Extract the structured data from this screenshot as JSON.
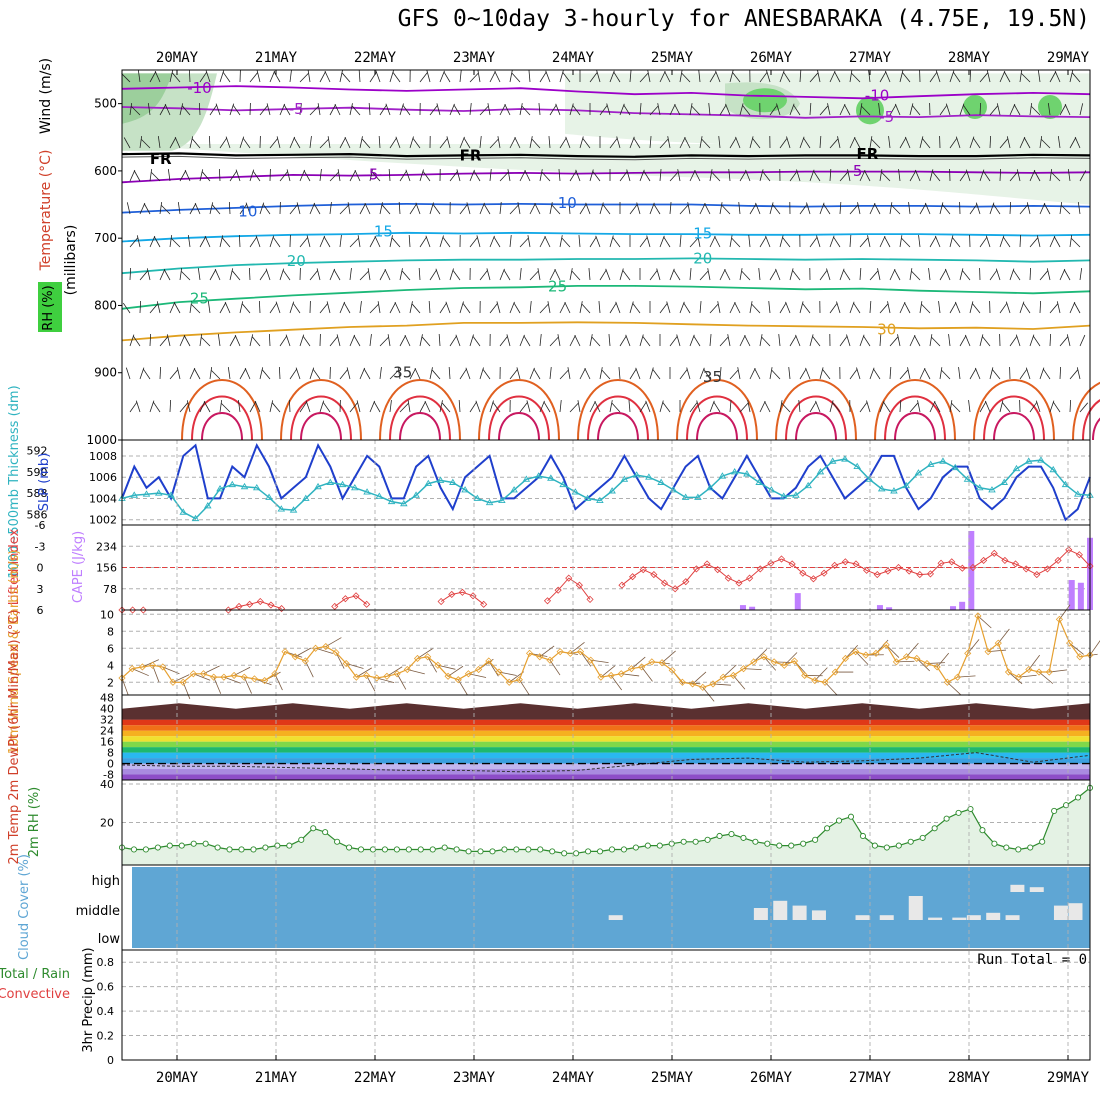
{
  "title": "GFS 0~10day 3-hourly for ANESBARAKA (4.75E, 19.5N)",
  "dates": [
    "20MAY",
    "21MAY",
    "22MAY",
    "23MAY",
    "24MAY",
    "25MAY",
    "26MAY",
    "27MAY",
    "28MAY",
    "29MAY"
  ],
  "colors": {
    "panel_bg": "#ffffff",
    "grid": "#b0b0b0",
    "rh_light": "#e7f3e7",
    "rh_mid": "#c6e2c6",
    "rh_dark": "#6fd36f",
    "thickness": "#2fb3c0",
    "slp": "#1f3fcc",
    "lifted_index": "#e04040",
    "cape": "#bf7fff",
    "wind_speed": "#e6a030",
    "rh2m": "#2e8b2e",
    "cloud_bg": "#5fa6d4",
    "cloud_bar": "#e8e8e8"
  },
  "chart_data": [
    {
      "type": "contour",
      "name": "cross-section",
      "ylabel_wind": "Wind (m/s)",
      "ylabel_temp": "Temperature (°C)",
      "ylabel_rh": "RH (%)",
      "ylabel_units": "(millibars)",
      "yticks": [
        "500",
        "600",
        "700",
        "800",
        "900",
        "1000"
      ],
      "ylim": [
        450,
        1000
      ],
      "temperature_labels": [
        {
          "label": "-10",
          "t": 0.08,
          "p": 477
        },
        {
          "label": "-10",
          "t": 0.78,
          "p": 488
        },
        {
          "label": "-5",
          "t": 0.18,
          "p": 508
        },
        {
          "label": "-5",
          "t": 0.79,
          "p": 520
        },
        {
          "label": "FR",
          "t": 0.04,
          "p": 582
        },
        {
          "label": "FR",
          "t": 0.36,
          "p": 577
        },
        {
          "label": "FR",
          "t": 0.77,
          "p": 575
        },
        {
          "label": "5",
          "t": 0.26,
          "p": 605
        },
        {
          "label": "5",
          "t": 0.76,
          "p": 600
        },
        {
          "label": "10",
          "t": 0.13,
          "p": 660
        },
        {
          "label": "10",
          "t": 0.46,
          "p": 648
        },
        {
          "label": "15",
          "t": 0.27,
          "p": 690
        },
        {
          "label": "15",
          "t": 0.6,
          "p": 693
        },
        {
          "label": "20",
          "t": 0.18,
          "p": 734
        },
        {
          "label": "20",
          "t": 0.6,
          "p": 730
        },
        {
          "label": "25",
          "t": 0.08,
          "p": 790
        },
        {
          "label": "25",
          "t": 0.45,
          "p": 772
        },
        {
          "label": "30",
          "t": 0.79,
          "p": 836
        },
        {
          "label": "35",
          "t": 0.29,
          "p": 900
        },
        {
          "label": "35",
          "t": 0.61,
          "p": 906
        }
      ],
      "isotherm_levels": [
        {
          "T": -10,
          "color": "#9b00c8",
          "p": [
            478,
            476,
            474,
            476,
            479,
            481,
            479,
            477,
            482,
            486,
            484,
            488,
            490,
            492,
            489,
            486,
            484,
            486
          ]
        },
        {
          "T": -5,
          "color": "#a020c8",
          "p": [
            505,
            507,
            510,
            508,
            506,
            509,
            511,
            508,
            510,
            514,
            516,
            518,
            521,
            519,
            520,
            517,
            519,
            520
          ]
        },
        {
          "T": 0,
          "color": "#000000",
          "p": [
            575,
            574,
            577,
            576,
            575,
            578,
            577,
            576,
            578,
            579,
            577,
            578,
            577,
            577,
            578,
            578,
            576,
            577
          ]
        },
        {
          "T": 5,
          "color": "#8b00b5",
          "p": [
            617,
            612,
            609,
            606,
            607,
            606,
            604,
            603,
            604,
            603,
            602,
            602,
            601,
            601,
            601,
            602,
            603,
            602
          ]
        },
        {
          "T": 10,
          "color": "#1f5fd8",
          "p": [
            662,
            658,
            655,
            652,
            650,
            649,
            650,
            649,
            650,
            650,
            650,
            652,
            653,
            652,
            652,
            653,
            652,
            653
          ]
        },
        {
          "T": 15,
          "color": "#14a8e6",
          "p": [
            705,
            700,
            697,
            695,
            694,
            692,
            693,
            692,
            693,
            694,
            694,
            695,
            695,
            694,
            694,
            695,
            696,
            695
          ]
        },
        {
          "T": 20,
          "color": "#22b8b0",
          "p": [
            752,
            745,
            740,
            737,
            735,
            733,
            732,
            732,
            731,
            731,
            730,
            731,
            732,
            731,
            732,
            733,
            735,
            733
          ]
        },
        {
          "T": 25,
          "color": "#1cb878",
          "p": [
            805,
            795,
            790,
            785,
            781,
            777,
            774,
            773,
            771,
            771,
            772,
            774,
            776,
            775,
            778,
            780,
            782,
            779
          ]
        },
        {
          "T": 30,
          "color": "#e0a020",
          "p": [
            852,
            845,
            840,
            836,
            832,
            830,
            826,
            826,
            825,
            826,
            828,
            830,
            831,
            832,
            834,
            833,
            835,
            830
          ]
        }
      ],
      "rh_shading": "Wet regions near 500-650 mb, especially 26-29 MAY",
      "wind_barbs": true
    },
    {
      "type": "line",
      "name": "thickness-slp",
      "ylabel_left": "1000~500mb Thickness (dm)",
      "ylabel_right": "SLP (mb)",
      "yticks_left": [
        "586",
        "588",
        "590",
        "592"
      ],
      "yticks_right": [
        "1002",
        "1004",
        "1006",
        "1008"
      ],
      "ylim_left": [
        585,
        593
      ],
      "ylim_right": [
        1001.5,
        1009.5
      ],
      "series": [
        {
          "name": "SLP",
          "axis": "right",
          "values": [
            1004,
            1007,
            1005,
            1006,
            1004,
            1008,
            1009,
            1004,
            1004,
            1007,
            1006,
            1009,
            1007,
            1004,
            1005,
            1006,
            1009,
            1007,
            1004,
            1006,
            1008,
            1007,
            1004,
            1004,
            1007,
            1008,
            1005,
            1003,
            1006,
            1007,
            1008,
            1004,
            1004,
            1005,
            1006,
            1008,
            1006,
            1003,
            1004,
            1005,
            1006,
            1008,
            1006,
            1004,
            1003,
            1005,
            1007,
            1008,
            1005,
            1004,
            1006,
            1008,
            1006,
            1004,
            1004,
            1005,
            1007,
            1008,
            1006,
            1004,
            1005,
            1006,
            1008,
            1008,
            1005,
            1003,
            1004,
            1006,
            1007,
            1007,
            1004,
            1003,
            1004,
            1006,
            1007,
            1007,
            1005,
            1002,
            1003,
            1006
          ]
        },
        {
          "name": "Thickness",
          "axis": "left",
          "values": [
            587.5,
            587.8,
            587.9,
            588.0,
            587.8,
            586.2,
            585.6,
            586.8,
            588.4,
            588.8,
            588.6,
            588.5,
            587.6,
            586.5,
            586.4,
            587.5,
            588.6,
            589.0,
            588.8,
            588.5,
            588.1,
            587.7,
            587.2,
            587.0,
            587.8,
            588.9,
            589.2,
            589.0,
            588.3,
            587.5,
            587.1,
            587.3,
            588.3,
            589.3,
            589.6,
            589.4,
            588.8,
            588.1,
            587.5,
            587.3,
            588.2,
            589.3,
            589.7,
            589.5,
            589.0,
            588.3,
            587.6,
            587.6,
            588.5,
            589.6,
            590.0,
            589.8,
            589.0,
            588.3,
            587.7,
            587.8,
            588.7,
            590.0,
            591.0,
            591.2,
            590.5,
            589.3,
            588.4,
            588.2,
            588.7,
            589.9,
            590.7,
            591.0,
            590.4,
            589.3,
            588.5,
            588.3,
            589.0,
            590.3,
            591.0,
            591.1,
            590.2,
            588.8,
            587.9,
            587.8
          ]
        }
      ]
    },
    {
      "type": "bar-line",
      "name": "lifted-index-cape",
      "ylabel_left": "Lifted Index",
      "ylabel_right": "CAPE (J/kg)",
      "yticks_left": [
        "-6",
        "-3",
        "0",
        "3",
        "6"
      ],
      "yticks_right": [
        "78",
        "156",
        "234"
      ],
      "ylim_left": [
        6,
        -6
      ],
      "ylim_right": [
        0,
        312
      ],
      "lifted_index": [
        6,
        6,
        6,
        null,
        null,
        null,
        null,
        null,
        null,
        null,
        6,
        5.5,
        5.2,
        4.8,
        5.3,
        5.8,
        null,
        null,
        null,
        null,
        5.5,
        4.4,
        4.0,
        5.2,
        null,
        null,
        null,
        null,
        null,
        null,
        4.8,
        3.8,
        3.5,
        4.0,
        5.2,
        null,
        null,
        null,
        null,
        null,
        4.7,
        3.2,
        1.5,
        2.5,
        4.5,
        null,
        null,
        2.5,
        1.3,
        0.3,
        1.0,
        2.2,
        3.0,
        2.0,
        0.2,
        -0.5,
        0.3,
        1.5,
        2.2,
        1.5,
        0.2,
        -0.6,
        -1.2,
        -0.5,
        0.8,
        1.6,
        0.8,
        -0.3,
        -0.8,
        -0.5,
        0.4,
        1.0,
        0.5,
        0.0,
        0.5,
        1.0,
        0.9,
        -0.6,
        -0.8,
        0.1,
        0.0,
        -1.0,
        -2.0,
        -1.0,
        -0.5,
        0.2,
        1.0,
        0.2,
        -1.0,
        -2.5,
        -1.8,
        -0.2
      ]
    },
    {
      "type": "bar",
      "name": "cape",
      "values_J_kg": [
        0,
        0,
        0,
        0,
        0,
        0,
        0,
        0,
        0,
        0,
        0,
        0,
        0,
        0,
        0,
        0,
        0,
        0,
        0,
        0,
        0,
        0,
        0,
        0,
        0,
        0,
        0,
        0,
        0,
        0,
        0,
        0,
        0,
        0,
        0,
        0,
        0,
        0,
        0,
        0,
        0,
        0,
        0,
        0,
        0,
        0,
        0,
        0,
        0,
        0,
        0,
        0,
        0,
        0,
        0,
        0,
        0,
        0,
        0,
        0,
        0,
        0,
        0,
        0,
        0,
        0,
        0,
        0,
        18,
        12,
        0,
        0,
        0,
        0,
        62,
        0,
        0,
        0,
        0,
        0,
        0,
        0,
        0,
        18,
        10,
        0,
        0,
        0,
        0,
        0,
        0,
        14,
        30,
        290,
        0,
        0,
        0,
        0,
        0,
        0,
        0,
        0,
        0,
        0,
        110,
        100,
        265
      ]
    },
    {
      "type": "line",
      "name": "10m-wind",
      "ylabel": "10m Wind Speed & Barbs (m/s)",
      "yticks": [
        "2",
        "4",
        "6",
        "8",
        "10"
      ],
      "ylim": [
        0.5,
        10.5
      ],
      "values": [
        2.5,
        3.6,
        3.8,
        4.0,
        3.8,
        2.0,
        2.0,
        3.0,
        3.0,
        2.6,
        2.6,
        2.8,
        2.6,
        2.4,
        2.2,
        3.0,
        5.6,
        5.0,
        4.5,
        6.0,
        6.2,
        5.5,
        4.2,
        2.6,
        2.8,
        2.5,
        2.7,
        3.0,
        3.5,
        4.8,
        5.0,
        4.0,
        2.7,
        2.3,
        3.0,
        3.5,
        4.5,
        3.2,
        2.0,
        2.3,
        5.4,
        5.0,
        4.6,
        5.6,
        5.4,
        5.6,
        4.6,
        2.6,
        2.8,
        3.0,
        3.6,
        3.8,
        4.4,
        4.3,
        3.4,
        2.0,
        1.8,
        1.4,
        1.8,
        2.6,
        2.8,
        3.6,
        4.4,
        5.0,
        4.4,
        4.0,
        4.5,
        2.8,
        2.2,
        2.0,
        3.2,
        4.8,
        5.6,
        5.2,
        5.4,
        6.4,
        4.4,
        5.0,
        4.8,
        4.2,
        3.8,
        2.0,
        2.6,
        5.4,
        9.8,
        5.6,
        6.6,
        3.2,
        2.6,
        3.5,
        3.2,
        3.2,
        9.4,
        6.6,
        5.0,
        5.2
      ]
    },
    {
      "type": "area",
      "name": "2m-temp-dewpt",
      "ylabel": "2m Temp 2m DewPt (6hr Min/Max) (°C)",
      "yticks": [
        "-8",
        "0",
        "8",
        "16",
        "24",
        "32",
        "40",
        "48"
      ],
      "ylim": [
        -12,
        50
      ],
      "temp_max": [
        40,
        44,
        40,
        44,
        40,
        44,
        40,
        44,
        40,
        44,
        40,
        44,
        40,
        44,
        40,
        44,
        40,
        44
      ],
      "dewpoint": [
        -1,
        -2,
        -2,
        -3,
        -4,
        -5,
        -5,
        -6,
        -5,
        -1,
        3,
        4,
        1,
        2,
        4,
        8,
        1,
        6
      ]
    },
    {
      "type": "area",
      "name": "2m-rh",
      "ylabel": "2m RH (%)",
      "yticks": [
        "20",
        "40"
      ],
      "ylim": [
        0,
        40
      ],
      "values": [
        7,
        6,
        6,
        7,
        8,
        8,
        9,
        9,
        7,
        6,
        6,
        6,
        7,
        8,
        8,
        11,
        17,
        15,
        10,
        7,
        6,
        6,
        6,
        6,
        6,
        6,
        6,
        7,
        6,
        5,
        5,
        5,
        6,
        6,
        6,
        6,
        5,
        4,
        4,
        5,
        5,
        6,
        6,
        7,
        8,
        8,
        9,
        10,
        10,
        11,
        13,
        14,
        12,
        10,
        9,
        8,
        8,
        9,
        11,
        17,
        21,
        23,
        13,
        8,
        7,
        8,
        10,
        12,
        17,
        22,
        25,
        27,
        16,
        9,
        7,
        6,
        7,
        10,
        26,
        29,
        33,
        38
      ]
    },
    {
      "type": "bar",
      "name": "cloud-cover",
      "ylabel": "Cloud Cover (%)",
      "yticks": [
        "high",
        "middle",
        "low"
      ],
      "bars": [
        {
          "t": 0.51,
          "level": "middle",
          "value": 20
        },
        {
          "t": 0.66,
          "level": "middle",
          "value": 50
        },
        {
          "t": 0.68,
          "level": "middle",
          "value": 80
        },
        {
          "t": 0.7,
          "level": "middle",
          "value": 60
        },
        {
          "t": 0.72,
          "level": "middle",
          "value": 40
        },
        {
          "t": 0.765,
          "level": "middle",
          "value": 20
        },
        {
          "t": 0.79,
          "level": "middle",
          "value": 20
        },
        {
          "t": 0.82,
          "level": "middle",
          "value": 100
        },
        {
          "t": 0.84,
          "level": "middle",
          "value": 10
        },
        {
          "t": 0.865,
          "level": "middle",
          "value": 10
        },
        {
          "t": 0.88,
          "level": "middle",
          "value": 20
        },
        {
          "t": 0.9,
          "level": "middle",
          "value": 30
        },
        {
          "t": 0.92,
          "level": "middle",
          "value": 20
        },
        {
          "t": 0.925,
          "level": "high",
          "value": 30
        },
        {
          "t": 0.945,
          "level": "high",
          "value": 20
        },
        {
          "t": 0.97,
          "level": "middle",
          "value": 60
        },
        {
          "t": 0.985,
          "level": "middle",
          "value": 70
        }
      ]
    },
    {
      "type": "line",
      "name": "precip",
      "ylabel": "3hr Precip (mm)",
      "legend_total": "Total / Rain",
      "legend_convective": "Convective",
      "run_total": "Run Total = 0",
      "yticks": [
        "0",
        "0.2",
        "0.4",
        "0.6",
        "0.8"
      ],
      "ylim": [
        0,
        0.9
      ],
      "values": []
    }
  ]
}
